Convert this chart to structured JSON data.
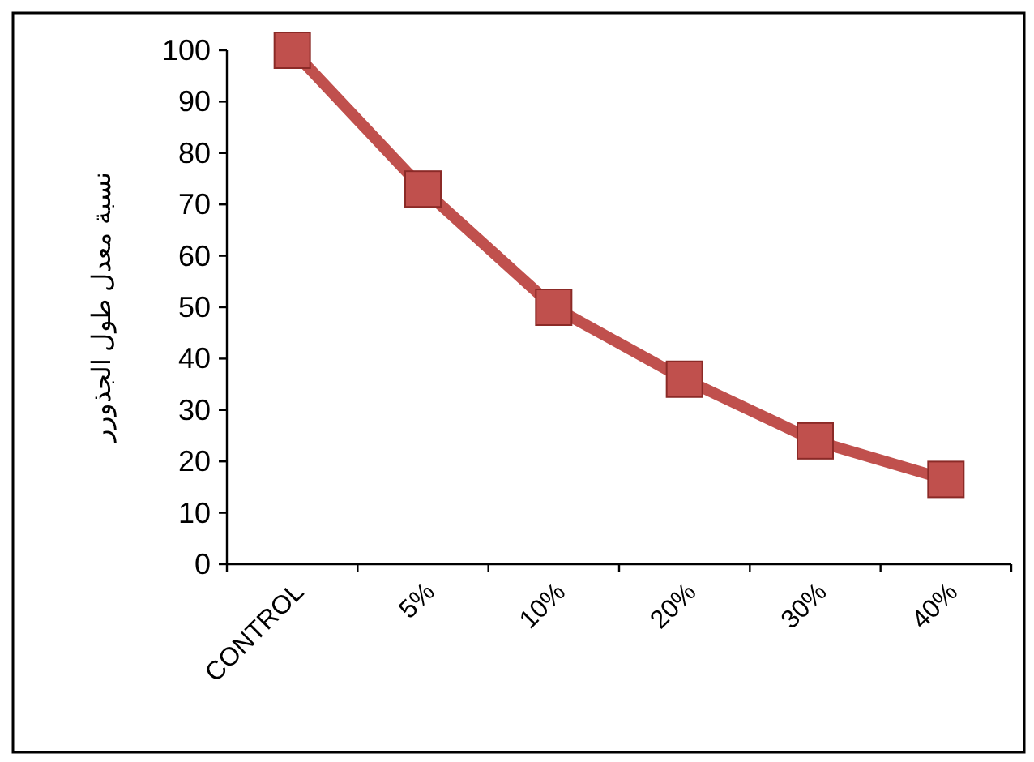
{
  "chart_data": {
    "type": "line",
    "ylabel": "نسبة معدل طول الجذورر",
    "categories": [
      "CONTROL",
      "5%",
      "10%",
      "20%",
      "30%",
      "40%"
    ],
    "series": [
      {
        "color": "#c0504d",
        "values": [
          100,
          73,
          50,
          36,
          24,
          16.5
        ]
      }
    ],
    "ylim": [
      0,
      100
    ],
    "yticks": [
      0,
      10,
      20,
      30,
      40,
      50,
      60,
      70,
      80,
      90,
      100
    ],
    "marker": "square",
    "line_style": "solid",
    "grid": false
  }
}
